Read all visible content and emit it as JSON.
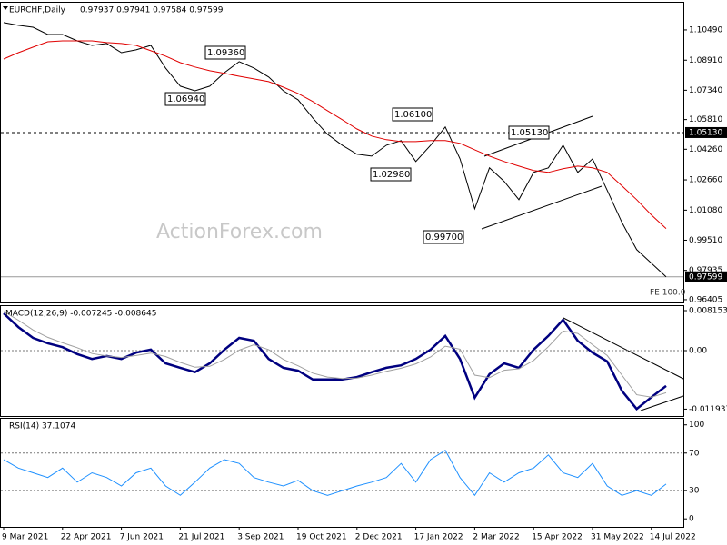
{
  "chart_data": [
    {
      "type": "line",
      "title": "EURCHF,Daily",
      "subtitle": "0.97937 0.97941 0.97584 0.97599",
      "watermark": "ActionForex.com",
      "series": [
        {
          "name": "EURCHF",
          "color": "#000000",
          "values": [
            1.1087,
            1.1073,
            1.1063,
            1.1025,
            1.1025,
            1.0992,
            1.0968,
            1.0978,
            1.093,
            1.0945,
            1.0968,
            1.085,
            1.0755,
            1.0731,
            1.0755,
            1.0826,
            1.0883,
            1.085,
            1.0803,
            1.0731,
            1.0684,
            1.0589,
            1.0504,
            1.0447,
            1.04,
            1.039,
            1.0447,
            1.0471,
            1.0362,
            1.0447,
            1.0542,
            1.0376,
            1.0115,
            1.0329,
            1.0258,
            1.0163,
            1.0305,
            1.0329,
            1.0447,
            1.0305,
            1.0376,
            1.0211,
            1.0044,
            0.9902,
            0.9831,
            0.97599
          ]
        },
        {
          "name": "SMA",
          "color": "#e00000",
          "values": [
            1.0897,
            1.093,
            1.0959,
            1.0987,
            1.0992,
            1.0992,
            1.0992,
            1.0983,
            1.0978,
            1.0968,
            1.094,
            1.0912,
            1.0878,
            1.0855,
            1.0836,
            1.0822,
            1.0807,
            1.0793,
            1.0779,
            1.075,
            1.0717,
            1.0675,
            1.0627,
            1.058,
            1.0532,
            1.0495,
            1.0476,
            1.0466,
            1.0466,
            1.0471,
            1.0471,
            1.0457,
            1.0423,
            1.039,
            1.0362,
            1.0338,
            1.0315,
            1.0305,
            1.0324,
            1.0338,
            1.0329,
            1.0305,
            1.0235,
            1.0163,
            1.0083,
            1.0012
          ]
        }
      ],
      "ylim": [
        0.9626,
        1.1191
      ],
      "yticks": [
        {
          "value": 1.1049,
          "label": "1.10490"
        },
        {
          "value": 1.0891,
          "label": "1.08910"
        },
        {
          "value": 1.0734,
          "label": "1.07340"
        },
        {
          "value": 1.0581,
          "label": "1.05810"
        },
        {
          "value": 1.0426,
          "label": "1.04260"
        },
        {
          "value": 1.0266,
          "label": "1.02660"
        },
        {
          "value": 1.0108,
          "label": "1.01080"
        },
        {
          "value": 0.9951,
          "label": "0.99510"
        },
        {
          "value": 0.97935,
          "label": "0.97935"
        },
        {
          "value": 0.96405,
          "label": "0.96405"
        }
      ],
      "levels": [
        {
          "value": 1.0513,
          "label": "1.05130",
          "style": "dashed"
        },
        {
          "value": 0.97599,
          "label": "0.97599",
          "style": "solid"
        }
      ],
      "annotations": [
        "1.09360",
        "1.06940",
        "1.06100",
        "1.05130",
        "1.02980",
        "0.99700",
        "FE 100.0"
      ],
      "grid": false
    },
    {
      "type": "line",
      "title": "MACD(12,26,9) -0.007245 -0.008645",
      "series": [
        {
          "name": "MACD",
          "color": "#000080",
          "values": [
            0.0076,
            0.0048,
            0.0026,
            0.0015,
            0.0007,
            -0.0007,
            -0.0017,
            -0.0011,
            -0.0017,
            -0.0004,
            0.0002,
            -0.0026,
            -0.0035,
            -0.0044,
            -0.0026,
            0.0002,
            0.0026,
            0.002,
            -0.0017,
            -0.0035,
            -0.0041,
            -0.0059,
            -0.0059,
            -0.0059,
            -0.0054,
            -0.0044,
            -0.0035,
            -0.003,
            -0.0017,
            0.0002,
            0.003,
            -0.0017,
            -0.0096,
            -0.0048,
            -0.0026,
            -0.0035,
            0.0002,
            0.003,
            0.0063,
            0.002,
            -0.0004,
            -0.0022,
            -0.0082,
            -0.0119,
            -0.0095,
            -0.0072
          ]
        },
        {
          "name": "Signal",
          "color": "#a0a0a0",
          "values": [
            0.008,
            0.0062,
            0.0042,
            0.0027,
            0.0016,
            0.0006,
            -0.0006,
            -0.0011,
            -0.0014,
            -0.001,
            -0.0005,
            -0.0012,
            -0.0024,
            -0.0034,
            -0.0032,
            -0.0018,
            0.0001,
            0.0012,
            0.0002,
            -0.0018,
            -0.0031,
            -0.0046,
            -0.0054,
            -0.0057,
            -0.0056,
            -0.005,
            -0.0042,
            -0.0036,
            -0.0027,
            -0.0013,
            0.0009,
            0.0003,
            -0.005,
            -0.0055,
            -0.004,
            -0.0037,
            -0.002,
            0.0008,
            0.004,
            0.0035,
            0.0012,
            -0.001,
            -0.005,
            -0.009,
            -0.0095,
            -0.0086
          ]
        }
      ],
      "ylim": [
        -0.013342,
        0.00908
      ],
      "yticks": [
        0.008153,
        {
          "value": 0,
          "label": "0.00"
        },
        -0.011937
      ],
      "grid": true
    },
    {
      "type": "line",
      "title": "RSI(14) 37.1074",
      "categories": [
        "9 Mar 2021",
        null,
        null,
        null,
        "22 Apr 2021",
        null,
        null,
        null,
        "7 Jun 2021",
        null,
        null,
        null,
        "21 Jul 2021",
        null,
        null,
        null,
        "3 Sep 2021",
        null,
        null,
        null,
        "19 Oct 2021",
        null,
        null,
        null,
        "2 Dec 2021",
        null,
        null,
        null,
        "17 Jan 2022",
        null,
        null,
        null,
        "2 Mar 2022",
        null,
        null,
        null,
        "15 Apr 2022",
        null,
        null,
        null,
        "31 May 2022",
        null,
        null,
        null,
        "14 Jul 2022",
        null
      ],
      "series": [
        {
          "name": "RSI",
          "color": "#1e90ff",
          "values": [
            63,
            54,
            49,
            44,
            54,
            39,
            49,
            44,
            35,
            49,
            54,
            35,
            25,
            39,
            54,
            63,
            59,
            44,
            39,
            35,
            41,
            30,
            25,
            30,
            35,
            39,
            44,
            59,
            39,
            63,
            73,
            44,
            25,
            49,
            39,
            49,
            54,
            68,
            49,
            44,
            59,
            35,
            25,
            30,
            25,
            37
          ]
        }
      ],
      "ylim": [
        -8.5,
        106.5
      ],
      "yticks": [
        100,
        70,
        30,
        0
      ],
      "grid": true
    }
  ]
}
